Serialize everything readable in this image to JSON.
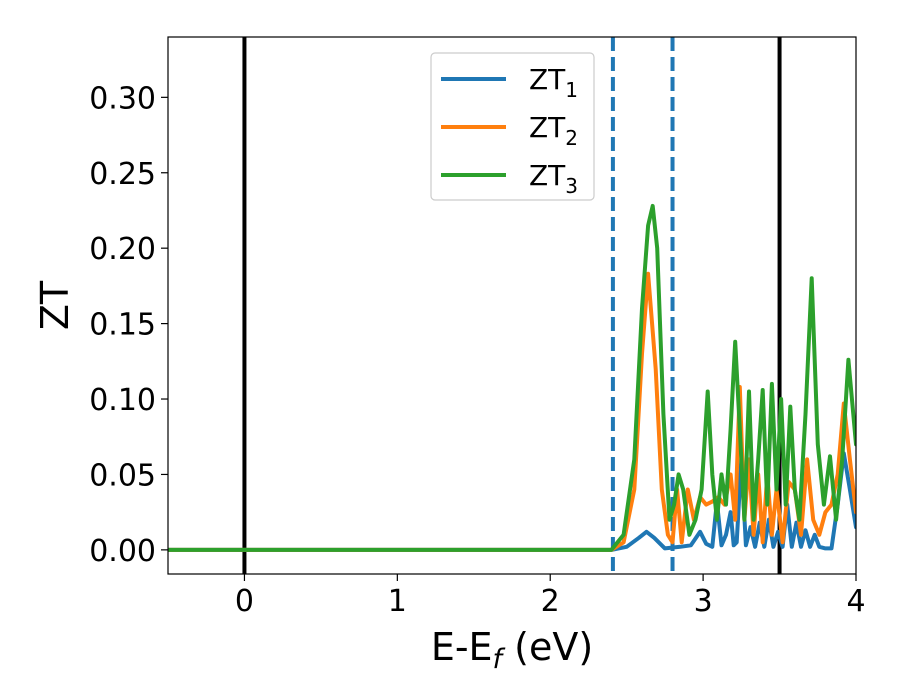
{
  "chart_data": {
    "type": "line",
    "xlabel": "E-E",
    "xlabel_sub": "f",
    "xlabel_unit": " (eV)",
    "ylabel": "ZT",
    "xlim": [
      -0.5,
      4.0
    ],
    "ylim": [
      -0.016,
      0.34
    ],
    "xticks": [
      0,
      1,
      2,
      3,
      4
    ],
    "xtick_labels": [
      "0",
      "1",
      "2",
      "3",
      "4"
    ],
    "yticks": [
      0.0,
      0.05,
      0.1,
      0.15,
      0.2,
      0.25,
      0.3
    ],
    "ytick_labels": [
      "0.00",
      "0.05",
      "0.10",
      "0.15",
      "0.20",
      "0.25",
      "0.30"
    ],
    "grid": false,
    "legend_position": "top-center",
    "vertical_lines": [
      {
        "x": 0.0,
        "style": "solid",
        "color": "#000000"
      },
      {
        "x": 3.5,
        "style": "solid",
        "color": "#000000"
      },
      {
        "x": 2.41,
        "style": "dashed",
        "color": "#1f77b4"
      },
      {
        "x": 2.8,
        "style": "dashed",
        "color": "#1f77b4"
      }
    ],
    "series": [
      {
        "name": "ZT",
        "name_sub": "1",
        "color": "#1f77b4",
        "x": [
          -0.5,
          2.4,
          2.5,
          2.58,
          2.63,
          2.68,
          2.75,
          2.85,
          2.92,
          2.98,
          3.02,
          3.06,
          3.09,
          3.12,
          3.15,
          3.18,
          3.2,
          3.22,
          3.25,
          3.28,
          3.31,
          3.34,
          3.37,
          3.4,
          3.43,
          3.46,
          3.49,
          3.52,
          3.55,
          3.58,
          3.61,
          3.64,
          3.67,
          3.7,
          3.73,
          3.76,
          3.8,
          3.84,
          3.88,
          3.92,
          3.96,
          4.0
        ],
        "y": [
          0.0,
          0.0,
          0.002,
          0.008,
          0.012,
          0.008,
          0.001,
          0.002,
          0.003,
          0.012,
          0.004,
          0.002,
          0.032,
          0.003,
          0.01,
          0.025,
          0.003,
          0.005,
          0.06,
          0.003,
          0.015,
          0.002,
          0.018,
          0.002,
          0.02,
          0.002,
          0.012,
          0.002,
          0.03,
          0.002,
          0.018,
          0.002,
          0.013,
          0.002,
          0.01,
          0.002,
          0.001,
          0.001,
          0.03,
          0.064,
          0.04,
          0.015
        ]
      },
      {
        "name": "ZT",
        "name_sub": "2",
        "color": "#ff7f0e",
        "x": [
          -0.5,
          2.4,
          2.48,
          2.55,
          2.6,
          2.64,
          2.69,
          2.73,
          2.77,
          2.8,
          2.83,
          2.86,
          2.9,
          2.94,
          2.98,
          3.02,
          3.06,
          3.1,
          3.14,
          3.18,
          3.21,
          3.24,
          3.27,
          3.3,
          3.33,
          3.36,
          3.39,
          3.42,
          3.45,
          3.48,
          3.52,
          3.56,
          3.6,
          3.64,
          3.68,
          3.72,
          3.76,
          3.8,
          3.84,
          3.88,
          3.92,
          3.96,
          4.0
        ],
        "y": [
          0.0,
          0.0,
          0.005,
          0.04,
          0.13,
          0.183,
          0.12,
          0.04,
          0.01,
          0.005,
          0.04,
          0.005,
          0.04,
          0.02,
          0.035,
          0.03,
          0.032,
          0.035,
          0.03,
          0.05,
          0.02,
          0.108,
          0.02,
          0.06,
          0.01,
          0.05,
          0.005,
          0.05,
          0.01,
          0.04,
          0.005,
          0.045,
          0.04,
          0.01,
          0.06,
          0.02,
          0.01,
          0.025,
          0.03,
          0.05,
          0.097,
          0.06,
          0.025
        ]
      },
      {
        "name": "ZT",
        "name_sub": "3",
        "color": "#2ca02c",
        "x": [
          -0.5,
          2.4,
          2.48,
          2.55,
          2.6,
          2.64,
          2.67,
          2.7,
          2.74,
          2.78,
          2.81,
          2.84,
          2.87,
          2.91,
          2.95,
          2.99,
          3.03,
          3.06,
          3.09,
          3.12,
          3.15,
          3.18,
          3.21,
          3.24,
          3.27,
          3.3,
          3.33,
          3.36,
          3.39,
          3.42,
          3.45,
          3.48,
          3.51,
          3.54,
          3.57,
          3.6,
          3.63,
          3.67,
          3.71,
          3.75,
          3.79,
          3.83,
          3.87,
          3.91,
          3.95,
          4.0
        ],
        "y": [
          0.0,
          0.0,
          0.01,
          0.06,
          0.16,
          0.215,
          0.228,
          0.2,
          0.09,
          0.02,
          0.03,
          0.05,
          0.04,
          0.01,
          0.02,
          0.04,
          0.105,
          0.05,
          0.02,
          0.05,
          0.03,
          0.08,
          0.138,
          0.08,
          0.02,
          0.105,
          0.02,
          0.06,
          0.106,
          0.03,
          0.11,
          0.04,
          0.1,
          0.03,
          0.095,
          0.04,
          0.02,
          0.09,
          0.18,
          0.07,
          0.03,
          0.062,
          0.02,
          0.06,
          0.126,
          0.07
        ]
      }
    ]
  }
}
